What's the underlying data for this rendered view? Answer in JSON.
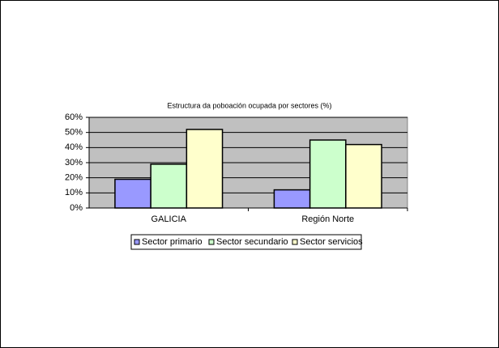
{
  "chart_data": {
    "type": "bar",
    "title": "Estructura da poboación ocupada por sectores (%)",
    "categories": [
      "GALICIA",
      "Región Norte"
    ],
    "series": [
      {
        "name": "Sector primario",
        "color": "#9999ff",
        "values": [
          19,
          12
        ]
      },
      {
        "name": "Sector secundario",
        "color": "#ccffcc",
        "values": [
          29,
          45
        ]
      },
      {
        "name": "Sector servicios",
        "color": "#ffffcc",
        "values": [
          52,
          42
        ]
      }
    ],
    "ylim": [
      0,
      60
    ],
    "yticks": [
      {
        "value": 0,
        "label": "0%"
      },
      {
        "value": 10,
        "label": "10%"
      },
      {
        "value": 20,
        "label": "20%"
      },
      {
        "value": 30,
        "label": "30%"
      },
      {
        "value": 40,
        "label": "40%"
      },
      {
        "value": 50,
        "label": "50%"
      },
      {
        "value": 60,
        "label": "60%"
      }
    ],
    "grid": true,
    "legend": "bottom",
    "plot_background": "#c0c0c0"
  }
}
